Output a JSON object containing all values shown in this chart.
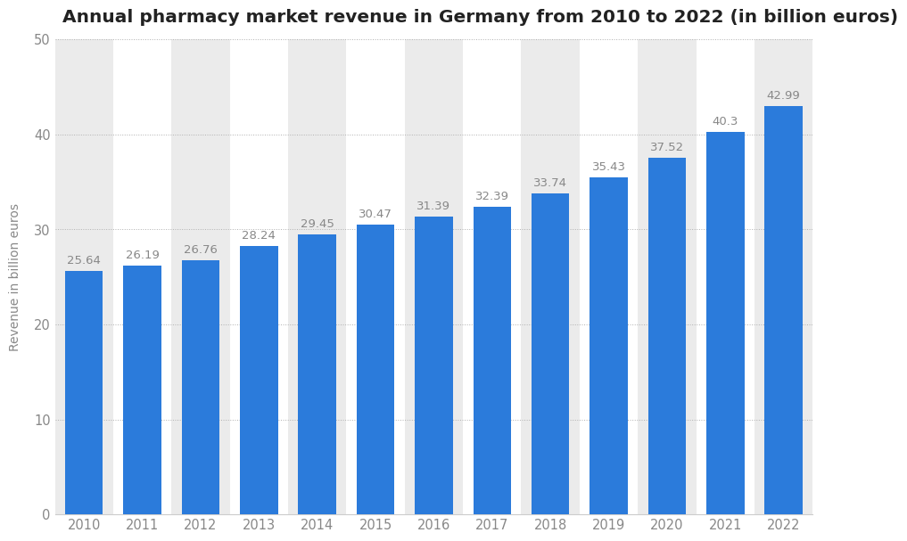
{
  "title": "Annual pharmacy market revenue in Germany from 2010 to 2022 (in billion euros)",
  "years": [
    "2010",
    "2011",
    "2012",
    "2013",
    "2014",
    "2015",
    "2016",
    "2017",
    "2018",
    "2019",
    "2020",
    "2021",
    "2022"
  ],
  "values": [
    25.64,
    26.19,
    26.76,
    28.24,
    29.45,
    30.47,
    31.39,
    32.39,
    33.74,
    35.43,
    37.52,
    40.3,
    42.99
  ],
  "bar_color": "#2b7bdb",
  "background_color": "#ffffff",
  "plot_background_color": "#ffffff",
  "stripe_color": "#ebebeb",
  "ylabel": "Revenue in billion euros",
  "ylim": [
    0,
    50
  ],
  "yticks": [
    0,
    10,
    20,
    30,
    40,
    50
  ],
  "title_fontsize": 14.5,
  "label_fontsize": 10,
  "tick_fontsize": 10.5,
  "value_label_fontsize": 9.5,
  "grid_color": "#b0b0b0",
  "text_color": "#888888",
  "title_color": "#222222"
}
